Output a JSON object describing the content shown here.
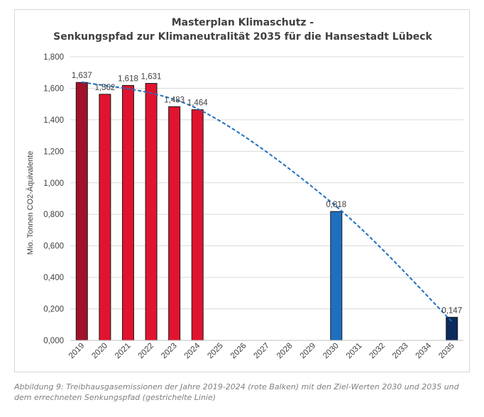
{
  "chart_data": {
    "type": "bar",
    "title": [
      "Masterplan Klimaschutz -",
      "Senkungspfad zur Klimaneutralität 2035 für die Hansestadt Lübeck"
    ],
    "ylabel": "Mio. Tonnen CO2-Äquivalente",
    "xlabel": "",
    "ylim": [
      0,
      1.8
    ],
    "yticks": [
      "0,000",
      "0,200",
      "0,400",
      "0,600",
      "0,800",
      "1,000",
      "1,200",
      "1,400",
      "1,600",
      "1,800"
    ],
    "ytick_values": [
      0,
      0.2,
      0.4,
      0.6,
      0.8,
      1.0,
      1.2,
      1.4,
      1.6,
      1.8
    ],
    "grid": true,
    "categories": [
      "2019",
      "2020",
      "2021",
      "2022",
      "2023",
      "2024",
      "2025",
      "2026",
      "2027",
      "2028",
      "2029",
      "2030",
      "2031",
      "2032",
      "2033",
      "2034",
      "2035"
    ],
    "values": [
      1.637,
      1.562,
      1.618,
      1.631,
      1.483,
      1.464,
      null,
      null,
      null,
      null,
      null,
      0.818,
      null,
      null,
      null,
      null,
      0.147
    ],
    "value_labels": [
      "1,637",
      "1,562",
      "1,618",
      "1,631",
      "1,483",
      "1,464",
      "",
      "",
      "",
      "",
      "",
      "0,818",
      "",
      "",
      "",
      "",
      "0,147"
    ],
    "bar_colors": [
      "#a0122a",
      "#e0142f",
      "#e0142f",
      "#e0142f",
      "#e0142f",
      "#e0142f",
      "",
      "",
      "",
      "",
      "",
      "#1f6fbf",
      "",
      "",
      "",
      "",
      "#0d2a5c"
    ],
    "trend": {
      "style": "dashed",
      "color": "#1f6fbf",
      "x": [
        "2019",
        "2024",
        "2030",
        "2035"
      ],
      "y": [
        1.64,
        1.47,
        0.85,
        0.12
      ]
    }
  },
  "caption": "Abbildung 9: Treibhausgasemissionen der Jahre 2019-2024 (rote Balken) mit den Ziel-Werten 2030 und 2035 und dem errechneten Senkungspfad (gestrichelte Linie)"
}
